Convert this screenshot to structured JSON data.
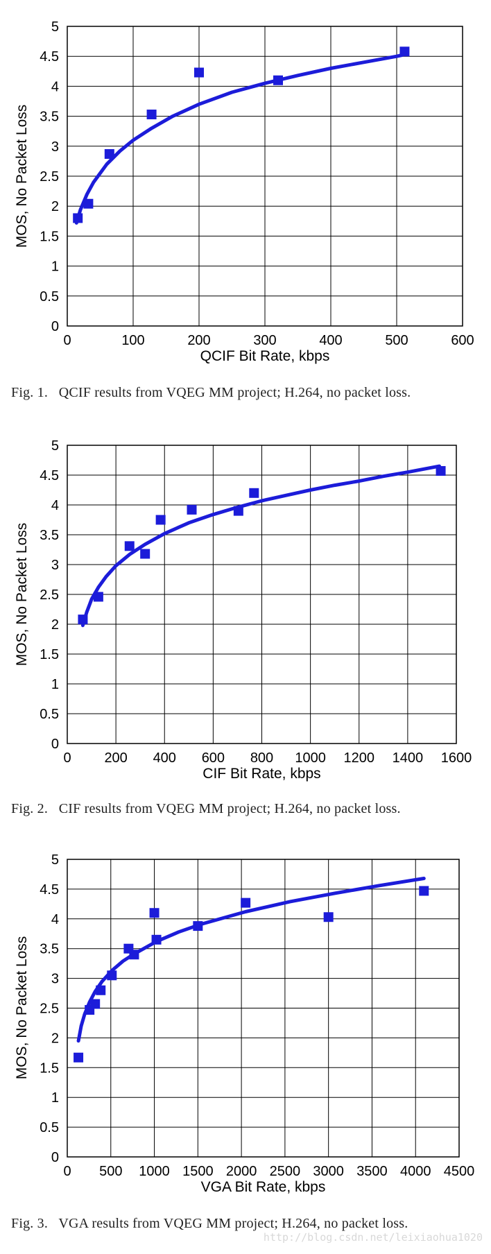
{
  "chart_data": [
    {
      "type": "scatter",
      "title": "",
      "xlabel": "QCIF Bit Rate, kbps",
      "ylabel": "MOS, No Packet Loss",
      "xlim": [
        0,
        600
      ],
      "ylim": [
        0,
        5
      ],
      "xticks": [
        0,
        100,
        200,
        300,
        400,
        500,
        600
      ],
      "yticks": [
        0,
        0.5,
        1,
        1.5,
        2,
        2.5,
        3,
        3.5,
        4,
        4.5,
        5
      ],
      "xtick_labels": [
        "0",
        "100",
        "200",
        "300",
        "400",
        "500",
        "600"
      ],
      "ytick_labels": [
        "0",
        "0.5",
        "1",
        "1.5",
        "2",
        "2.5",
        "3",
        "3.5",
        "4",
        "4.5",
        "5"
      ],
      "grid": true,
      "marker_color": "#1c1cd9",
      "series": [
        {
          "name": "measured",
          "points": [
            [
              16,
              1.8
            ],
            [
              32,
              2.04
            ],
            [
              64,
              2.87
            ],
            [
              128,
              3.53
            ],
            [
              200,
              4.23
            ],
            [
              320,
              4.1
            ],
            [
              512,
              4.58
            ]
          ]
        }
      ],
      "fit": {
        "name": "fit",
        "color": "#1c1cd9",
        "points": [
          [
            14,
            1.72
          ],
          [
            20,
            1.94
          ],
          [
            30,
            2.2
          ],
          [
            40,
            2.4
          ],
          [
            60,
            2.7
          ],
          [
            80,
            2.92
          ],
          [
            100,
            3.1
          ],
          [
            128,
            3.3
          ],
          [
            160,
            3.5
          ],
          [
            200,
            3.7
          ],
          [
            250,
            3.9
          ],
          [
            300,
            4.05
          ],
          [
            350,
            4.18
          ],
          [
            400,
            4.3
          ],
          [
            450,
            4.4
          ],
          [
            500,
            4.5
          ],
          [
            508,
            4.52
          ],
          [
            512,
            4.6
          ]
        ]
      }
    },
    {
      "type": "scatter",
      "title": "",
      "xlabel": "CIF Bit Rate, kbps",
      "ylabel": "MOS, No Packet Loss",
      "xlim": [
        0,
        1600
      ],
      "ylim": [
        0,
        5
      ],
      "xticks": [
        0,
        200,
        400,
        600,
        800,
        1000,
        1200,
        1400,
        1600
      ],
      "yticks": [
        0,
        0.5,
        1,
        1.5,
        2,
        2.5,
        3,
        3.5,
        4,
        4.5,
        5
      ],
      "xtick_labels": [
        "0",
        "200",
        "400",
        "600",
        "800",
        "1000",
        "1200",
        "1400",
        "1600"
      ],
      "ytick_labels": [
        "0",
        "0.5",
        "1",
        "1.5",
        "2",
        "2.5",
        "3",
        "3.5",
        "4",
        "4.5",
        "5"
      ],
      "grid": true,
      "marker_color": "#1c1cd9",
      "series": [
        {
          "name": "measured",
          "points": [
            [
              64,
              2.08
            ],
            [
              128,
              2.46
            ],
            [
              256,
              3.31
            ],
            [
              320,
              3.18
            ],
            [
              384,
              3.75
            ],
            [
              512,
              3.92
            ],
            [
              704,
              3.9
            ],
            [
              768,
              4.2
            ],
            [
              1536,
              4.57
            ]
          ]
        }
      ],
      "fit": {
        "name": "fit",
        "color": "#1c1cd9",
        "points": [
          [
            64,
            1.98
          ],
          [
            80,
            2.2
          ],
          [
            100,
            2.42
          ],
          [
            128,
            2.62
          ],
          [
            160,
            2.8
          ],
          [
            200,
            2.98
          ],
          [
            256,
            3.17
          ],
          [
            320,
            3.34
          ],
          [
            400,
            3.52
          ],
          [
            500,
            3.7
          ],
          [
            600,
            3.84
          ],
          [
            700,
            3.96
          ],
          [
            800,
            4.07
          ],
          [
            900,
            4.16
          ],
          [
            1000,
            4.25
          ],
          [
            1100,
            4.33
          ],
          [
            1200,
            4.4
          ],
          [
            1300,
            4.48
          ],
          [
            1400,
            4.55
          ],
          [
            1530,
            4.65
          ]
        ]
      }
    },
    {
      "type": "scatter",
      "title": "",
      "xlabel": "VGA Bit Rate, kbps",
      "ylabel": "MOS, No Packet Loss",
      "xlim": [
        0,
        4500
      ],
      "ylim": [
        0,
        5
      ],
      "xticks": [
        0,
        500,
        1000,
        1500,
        2000,
        2500,
        3000,
        3500,
        4000,
        4500
      ],
      "yticks": [
        0,
        0.5,
        1,
        1.5,
        2,
        2.5,
        3,
        3.5,
        4,
        4.5,
        5
      ],
      "xtick_labels": [
        "0",
        "500",
        "1000",
        "1500",
        "2000",
        "2500",
        "3000",
        "3500",
        "4000",
        "4500"
      ],
      "ytick_labels": [
        "0",
        "0.5",
        "1",
        "1.5",
        "2",
        "2.5",
        "3",
        "3.5",
        "4",
        "4.5",
        "5"
      ],
      "grid": true,
      "marker_color": "#1c1cd9",
      "series": [
        {
          "name": "measured",
          "points": [
            [
              128,
              1.67
            ],
            [
              256,
              2.47
            ],
            [
              320,
              2.57
            ],
            [
              384,
              2.8
            ],
            [
              512,
              3.05
            ],
            [
              704,
              3.5
            ],
            [
              768,
              3.4
            ],
            [
              1000,
              4.1
            ],
            [
              1024,
              3.65
            ],
            [
              1500,
              3.88
            ],
            [
              2048,
              4.27
            ],
            [
              3000,
              4.03
            ],
            [
              4096,
              4.47
            ]
          ]
        }
      ],
      "fit": {
        "name": "fit",
        "color": "#1c1cd9",
        "points": [
          [
            128,
            1.95
          ],
          [
            160,
            2.2
          ],
          [
            200,
            2.4
          ],
          [
            256,
            2.6
          ],
          [
            320,
            2.78
          ],
          [
            400,
            2.95
          ],
          [
            512,
            3.13
          ],
          [
            640,
            3.29
          ],
          [
            768,
            3.41
          ],
          [
            1024,
            3.62
          ],
          [
            1280,
            3.78
          ],
          [
            1536,
            3.91
          ],
          [
            2048,
            4.12
          ],
          [
            2560,
            4.29
          ],
          [
            3072,
            4.43
          ],
          [
            3584,
            4.56
          ],
          [
            4096,
            4.68
          ]
        ]
      }
    }
  ],
  "captions": [
    {
      "num": "Fig. 1.",
      "text": "QCIF results from VQEG MM project; H.264, no packet loss."
    },
    {
      "num": "Fig. 2.",
      "text": "CIF results from VQEG MM project; H.264, no packet loss."
    },
    {
      "num": "Fig. 3.",
      "text": "VGA results from VQEG MM project; H.264, no packet loss."
    }
  ],
  "watermark": "http://blog.csdn.net/leixiaohua1020"
}
